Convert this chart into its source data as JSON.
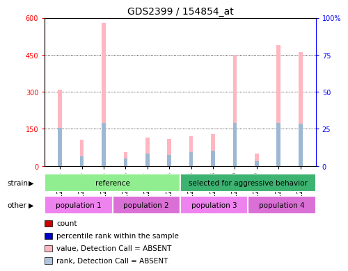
{
  "title": "GDS2399 / 154854_at",
  "samples": [
    "GSM120863",
    "GSM120864",
    "GSM120865",
    "GSM120866",
    "GSM120867",
    "GSM120868",
    "GSM120838",
    "GSM120858",
    "GSM120859",
    "GSM120860",
    "GSM120861",
    "GSM120862"
  ],
  "pink_bar_heights": [
    310,
    105,
    580,
    55,
    115,
    110,
    120,
    130,
    450,
    50,
    490,
    460
  ],
  "blue_bar_heights": [
    155,
    40,
    175,
    30,
    50,
    45,
    55,
    60,
    175,
    20,
    175,
    170
  ],
  "ylim_left": [
    0,
    600
  ],
  "ylim_right": [
    0,
    100
  ],
  "yticks_left": [
    0,
    150,
    300,
    450,
    600
  ],
  "yticks_right": [
    0,
    25,
    50,
    75,
    100
  ],
  "ytick_labels_left": [
    "0",
    "150",
    "300",
    "450",
    "600"
  ],
  "ytick_labels_right": [
    "0",
    "25",
    "50",
    "75",
    "100%"
  ],
  "strain_labels": [
    {
      "text": "reference",
      "start": 0,
      "end": 6,
      "color": "#90ee90"
    },
    {
      "text": "selected for aggressive behavior",
      "start": 6,
      "end": 12,
      "color": "#3cb371"
    }
  ],
  "other_labels": [
    {
      "text": "population 1",
      "start": 0,
      "end": 3,
      "color": "#ee82ee"
    },
    {
      "text": "population 2",
      "start": 3,
      "end": 6,
      "color": "#da70d6"
    },
    {
      "text": "population 3",
      "start": 6,
      "end": 9,
      "color": "#ee82ee"
    },
    {
      "text": "population 4",
      "start": 9,
      "end": 12,
      "color": "#da70d6"
    }
  ],
  "legend_items": [
    {
      "label": "count",
      "color": "#cc0000"
    },
    {
      "label": "percentile rank within the sample",
      "color": "#0000cc"
    },
    {
      "label": "value, Detection Call = ABSENT",
      "color": "#ffb6c1"
    },
    {
      "label": "rank, Detection Call = ABSENT",
      "color": "#b0c4de"
    }
  ],
  "bar_width": 0.18,
  "pink_color": "#ffb6c1",
  "blue_color": "#9db8d2",
  "bg_color": "#ffffff",
  "title_fontsize": 10,
  "tick_fontsize": 7,
  "label_fontsize": 7.5
}
